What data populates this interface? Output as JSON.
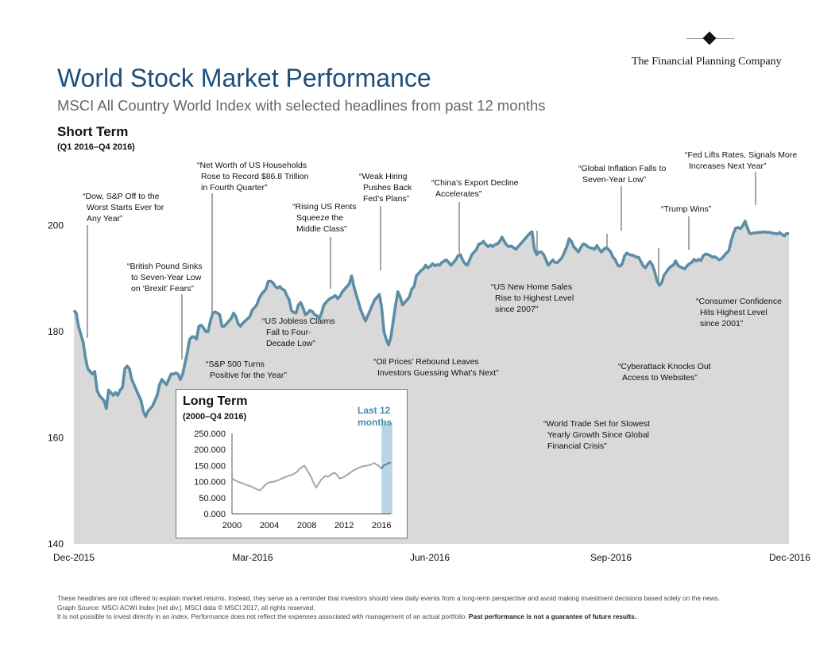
{
  "logo": {
    "text": "The Financial Planning Company"
  },
  "header": {
    "title": "World Stock Market Performance",
    "subtitle": "MSCI All Country World Index with selected headlines from past 12 months"
  },
  "section": {
    "title": "Short Term",
    "range": "(Q1 2016–Q4 2016)"
  },
  "chart_data": [
    {
      "type": "area",
      "title": "Short Term",
      "subtitle": "(Q1 2016–Q4 2016)",
      "ylim": [
        140,
        205
      ],
      "yticks": [
        "140",
        "160",
        "180",
        "200"
      ],
      "xticks": [
        "Dec-2015",
        "Mar-2016",
        "Jun-2016",
        "Sep-2016",
        "Dec-2016"
      ],
      "colors": {
        "line": "#5b8ea6",
        "fill": "#d9d9d9",
        "leader": "#777777"
      },
      "series": [
        {
          "name": "MSCI ACWI",
          "values": [
            184,
            183.5,
            181,
            179.5,
            178,
            175,
            173,
            172.5,
            172,
            172.5,
            169,
            168,
            167.5,
            167,
            165.5,
            169,
            168.5,
            168,
            168.5,
            168,
            169,
            169.5,
            173,
            173.5,
            173,
            171,
            170,
            169,
            168,
            167,
            165,
            164,
            165,
            165.5,
            166,
            167,
            168,
            170,
            171,
            170.5,
            170,
            171,
            172,
            172,
            172.2,
            172,
            171,
            172,
            174,
            176,
            178.5,
            179,
            179,
            178.6,
            181,
            181.2,
            180.7,
            180,
            180,
            182,
            183.5,
            183.7,
            183.5,
            183.2,
            181,
            181,
            181.5,
            182,
            182.5,
            183.5,
            182.8,
            181.5,
            181,
            181.6,
            182,
            182.4,
            182.8,
            184,
            184.5,
            185,
            186.2,
            187,
            187.5,
            188,
            189.5,
            189.5,
            189.2,
            188.5,
            188.2,
            188.5,
            188,
            187.8,
            186.8,
            186,
            184,
            183.6,
            183.5,
            185,
            185.5,
            184.5,
            183.2,
            183.5,
            184,
            183.8,
            183.2,
            183,
            182.5,
            183.5,
            185,
            185.5,
            186,
            186.3,
            186.5,
            186.8,
            186.2,
            186.7,
            187.5,
            188,
            188.5,
            189,
            190.5,
            188.5,
            187,
            185.5,
            184,
            183,
            182,
            183,
            184,
            185,
            186,
            186.5,
            187,
            184.5,
            180,
            178.5,
            177.5,
            179,
            182,
            185,
            187.5,
            186.5,
            185,
            185.5,
            186,
            186.5,
            188,
            188.5,
            190.5,
            191,
            191.5,
            191.8,
            192.5,
            192,
            192.3,
            192.8,
            192.4,
            192.6,
            192.5,
            193,
            193.3,
            193.5,
            193,
            192.5,
            193,
            193.5,
            194.3,
            194.5,
            193.5,
            192.8,
            192.5,
            193.5,
            194.5,
            195,
            195.5,
            196.5,
            196.6,
            197,
            196.4,
            196,
            196.3,
            196,
            196.4,
            196.5,
            197,
            197.8,
            197,
            196.3,
            196,
            196.1,
            195.8,
            195.5,
            196,
            196.5,
            197,
            197.5,
            198,
            198.5,
            198.8,
            195.5,
            194.5,
            195,
            195,
            194.5,
            193.5,
            192.5,
            193,
            193.5,
            193,
            193,
            193.5,
            194,
            195,
            196,
            197.5,
            197,
            196,
            195.5,
            195,
            195.8,
            196.5,
            196.4,
            196,
            195.8,
            195.7,
            195.5,
            196.2,
            195.5,
            195,
            195.5,
            195.8,
            195.5,
            195,
            194,
            193.5,
            192.5,
            192.3,
            192.8,
            194.3,
            194.8,
            194.5,
            194.4,
            194.3,
            194,
            194,
            193.2,
            192.4,
            192,
            192.7,
            193.2,
            192.5,
            191.2,
            189.5,
            188.7,
            189.2,
            190.6,
            191.2,
            191.8,
            192.3,
            192.5,
            193.3,
            192.5,
            192.2,
            192,
            191.8,
            192.4,
            192.8,
            193,
            193.6,
            193.3,
            193.6,
            193.4,
            194.3,
            194.6,
            194.5,
            194.3,
            194,
            194.1,
            193.8,
            193.5,
            193.8,
            194.3,
            194.8,
            195.2,
            197,
            198.5,
            199.5,
            199.6,
            199.4,
            199.9,
            200.8,
            199.6,
            198.5,
            198.5,
            198.6,
            198.6,
            198.7,
            198.7,
            198.8,
            198.7,
            198.7,
            198.7,
            198.5,
            198.5,
            198.4,
            198.6,
            198.3,
            198,
            198.5,
            198.4
          ]
        }
      ],
      "annotations": [
        {
          "text": [
            "“Dow, S&P Off to the",
            "Worst Starts Ever for",
            "Any Year”"
          ]
        },
        {
          "text": [
            "“British Pound Sinks",
            "to Seven-Year Low",
            "on ‘Brexit’ Fears”"
          ]
        },
        {
          "text": [
            "“S&P 500 Turns",
            "Positive for the Year”"
          ]
        },
        {
          "text": [
            "“Net Worth of US Households",
            "Rose to Record $86.8 Trillion",
            "in Fourth Quarter”"
          ]
        },
        {
          "text": [
            "“US Jobless Claims",
            "Fall to Four-",
            "Decade Low”"
          ]
        },
        {
          "text": [
            "“Rising US Rents",
            "Squeeze the",
            "Middle Class”"
          ]
        },
        {
          "text": [
            "“Weak Hiring",
            "Pushes Back",
            "Fed’s Plans”"
          ]
        },
        {
          "text": [
            "“Oil Prices’ Rebound Leaves",
            "Investors Guessing What’s Next”"
          ]
        },
        {
          "text": [
            "“China’s Export Decline",
            "Accelerates”"
          ]
        },
        {
          "text": [
            "“US New Home Sales",
            "Rise to Highest Level",
            "since 2007”"
          ]
        },
        {
          "text": [
            "“Global Inflation Falls to",
            "Seven-Year Low”"
          ]
        },
        {
          "text": [
            "“World Trade Set for Slowest",
            "Yearly Growth Since Global",
            "Financial Crisis”"
          ]
        },
        {
          "text": [
            "“Cyberattack Knocks Out",
            "Access to Websites”"
          ]
        },
        {
          "text": [
            "“Trump Wins”"
          ]
        },
        {
          "text": [
            "“Fed Lifts Rates, Signals More",
            "Increases Next Year”"
          ]
        },
        {
          "text": [
            "“Consumer Confidence",
            "Hits Highest Level",
            "since 2001”"
          ]
        }
      ]
    },
    {
      "type": "line",
      "title": "Long Term",
      "subtitle": "(2000–Q4 2016)",
      "highlight_label": [
        "Last 12",
        "months"
      ],
      "x_range": [
        2000,
        2017
      ],
      "ylim": [
        0,
        250
      ],
      "yticks": [
        "250.000",
        "200.000",
        "150.000",
        "100.000",
        "50.000",
        "0.000"
      ],
      "xticks": [
        "2000",
        "2004",
        "2008",
        "2012",
        "2016"
      ],
      "colors": {
        "line": "#a6a6a6",
        "highlight": "#4a8db0",
        "band": "#b9d5e3"
      },
      "series": [
        {
          "name": "2000–2015",
          "x": [
            2000,
            2000.25,
            2000.5,
            2000.75,
            2001,
            2001.25,
            2001.5,
            2001.75,
            2002,
            2002.25,
            2002.5,
            2002.75,
            2003,
            2003.25,
            2003.5,
            2003.75,
            2004,
            2004.5,
            2005,
            2005.5,
            2006,
            2006.5,
            2007,
            2007.25,
            2007.5,
            2007.75,
            2008,
            2008.25,
            2008.5,
            2008.75,
            2009,
            2009.25,
            2009.5,
            2009.75,
            2010,
            2010.25,
            2010.5,
            2010.75,
            2011,
            2011.25,
            2011.5,
            2011.75,
            2012,
            2012.5,
            2013,
            2013.5,
            2014,
            2014.5,
            2015,
            2015.25,
            2015.5,
            2015.75,
            2016
          ],
          "values": [
            110,
            105,
            102,
            98,
            96,
            94,
            90,
            88,
            86,
            82,
            79,
            75,
            73,
            80,
            88,
            94,
            98,
            100,
            105,
            112,
            118,
            122,
            132,
            140,
            146,
            150,
            138,
            125,
            112,
            95,
            82,
            92,
            105,
            112,
            118,
            115,
            120,
            125,
            128,
            120,
            110,
            112,
            115,
            125,
            135,
            142,
            148,
            150,
            155,
            158,
            152,
            148,
            140
          ]
        },
        {
          "name": "Last 12 months",
          "x": [
            2016,
            2016.2,
            2016.4,
            2016.6,
            2016.8,
            2017
          ],
          "values": [
            140,
            150,
            152,
            155,
            158,
            160
          ]
        }
      ]
    }
  ],
  "inset": {
    "title": "Long Term",
    "range": "(2000–Q4 2016)",
    "highlight_label_1": "Last 12",
    "highlight_label_2": "months"
  },
  "footer": {
    "line1": "These headlines are not offered to explain market returns. Instead, they serve as a reminder that investors should view daily events from a long-term perspective and avoid making investment decisions based solely on the news.",
    "line2": "Graph Source: MSCI ACWI Index [net div.]. MSCI data © MSCI 2017, all rights reserved.",
    "line3_normal": "It is not possible to invest directly in an index. Performance does not reflect the expenses associated with management of an actual portfolio. ",
    "line3_bold": "Past performance is not a guarantee of future results."
  }
}
